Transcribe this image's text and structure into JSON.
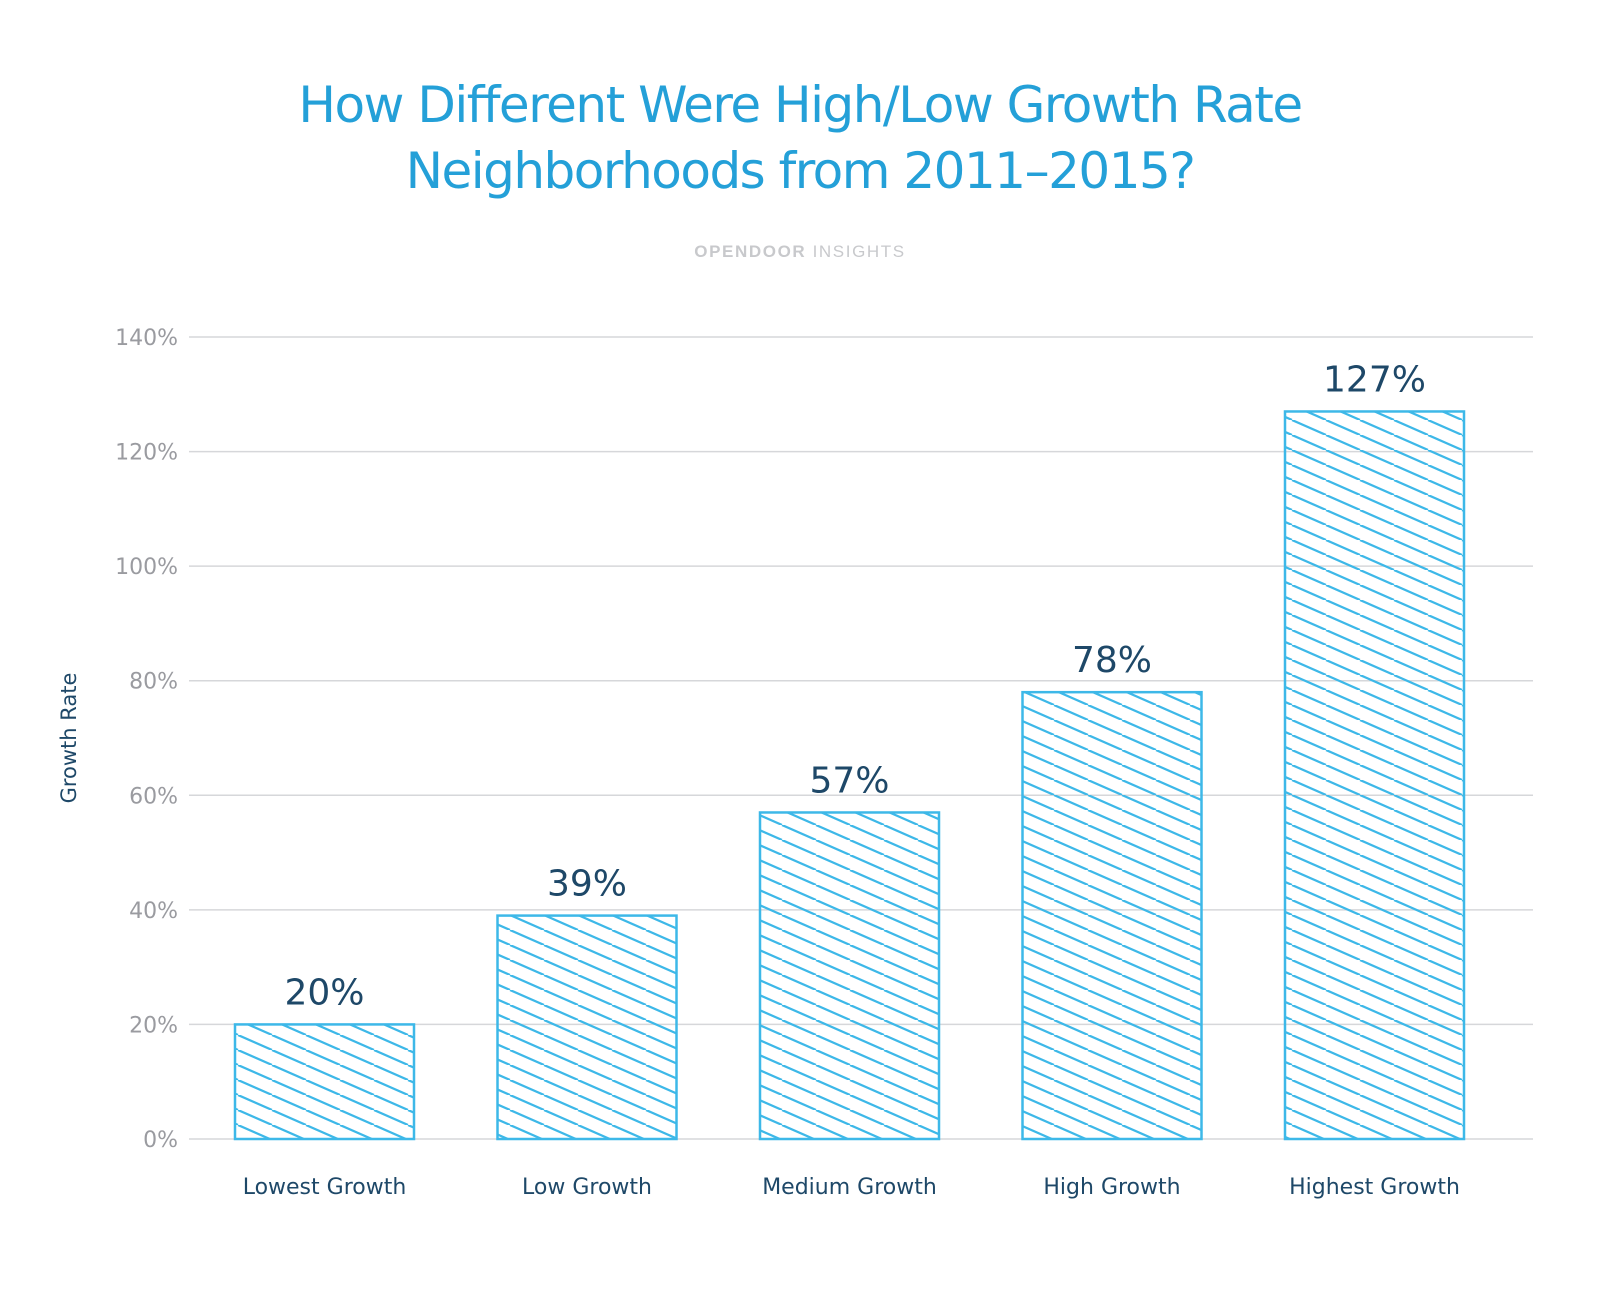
{
  "header": {
    "title_line1": "How Different Were High/Low Growth Rate",
    "title_line2": "Neighborhoods from 2011–2015?",
    "brand": "OPENDOOR",
    "brand_suffix": " INSIGHTS"
  },
  "colors": {
    "title": "#24a0d8",
    "bar": "#3db8e8",
    "label": "#1e4868",
    "tick": "#9a9ba0",
    "grid": "#d6d7da"
  },
  "chart_data": {
    "type": "bar",
    "title": "How Different Were High/Low Growth Rate Neighborhoods from 2011–2015?",
    "subtitle": "OPENDOOR INSIGHTS",
    "xlabel": "",
    "ylabel": "Growth Rate",
    "categories": [
      "Lowest Growth",
      "Low Growth",
      "Medium Growth",
      "High Growth",
      "Highest Growth"
    ],
    "values": [
      20,
      39,
      57,
      78,
      127
    ],
    "data_labels": [
      "20%",
      "39%",
      "57%",
      "78%",
      "127%"
    ],
    "ylim": [
      0,
      140
    ],
    "yticks": [
      0,
      20,
      40,
      60,
      80,
      100,
      120,
      140
    ],
    "ytick_labels": [
      "0%",
      "20%",
      "40%",
      "60%",
      "80%",
      "100%",
      "120%",
      "140%"
    ],
    "grid": true,
    "legend": "none",
    "bar_style": "diagonal-hatch"
  }
}
